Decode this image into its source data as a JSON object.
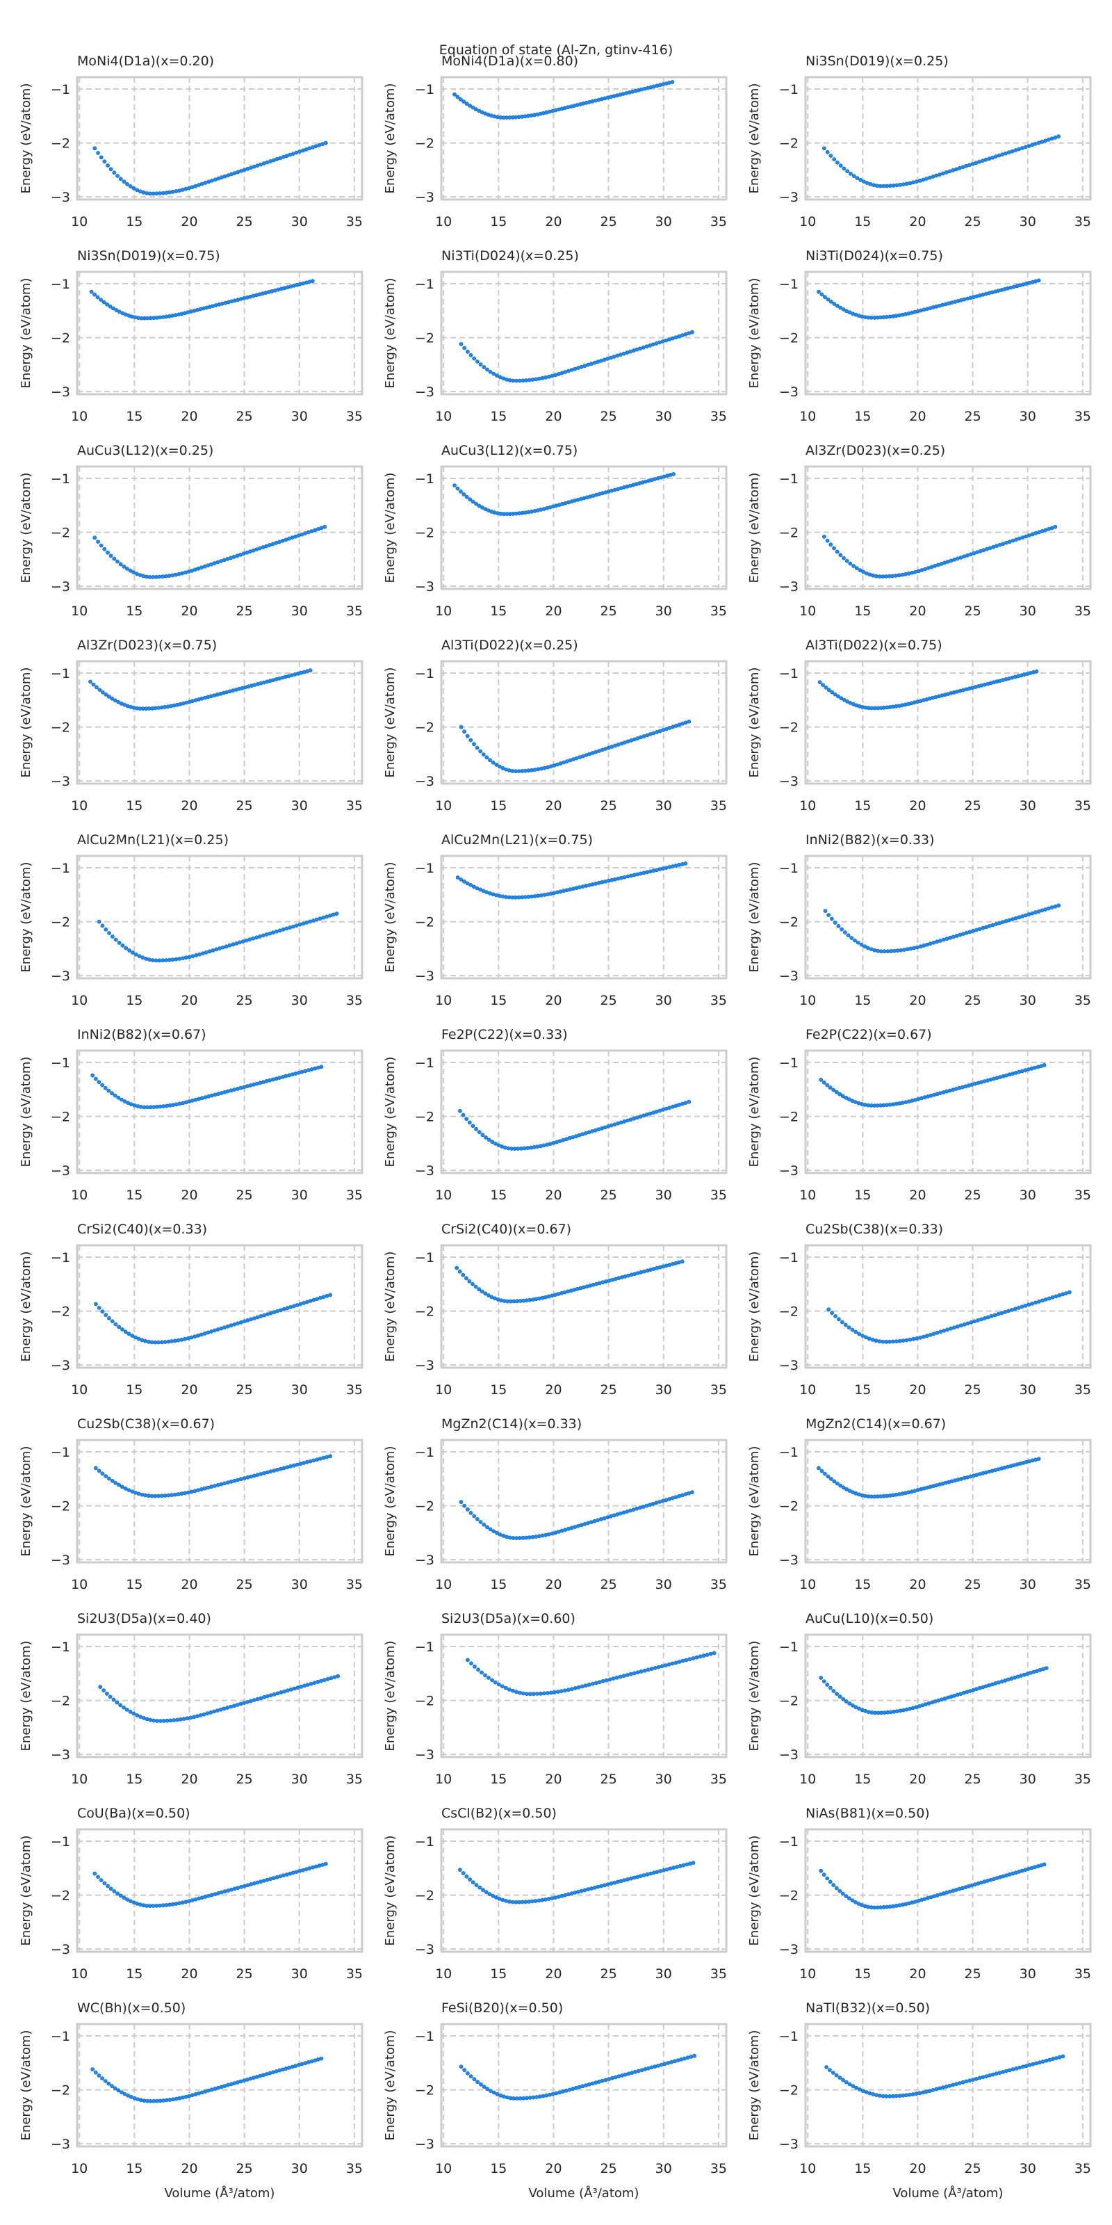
{
  "suptitle": "Equation of state (Al-Zn, gtinv-416)",
  "chart_data": {
    "type": "scatter",
    "title": "Equation of state (Al-Zn, gtinv-416)",
    "xlabel": "Volume (Å³/atom)",
    "ylabel": "Energy (eV/atom)",
    "xlim": [
      9.8,
      35.7
    ],
    "ylim": [
      -3.05,
      -0.78
    ],
    "xticks": [
      10,
      15,
      20,
      25,
      30,
      35
    ],
    "xtick_labels": [
      "10",
      "15",
      "20",
      "25",
      "30",
      "35"
    ],
    "yticks": [
      -1,
      -2,
      -3
    ],
    "ytick_labels": [
      "−1",
      "−2",
      "−3"
    ],
    "grid": true,
    "marker_color": "#2188e6",
    "points_per_panel": 72,
    "panels": [
      {
        "title": "MoNi4(D1a)(x=0.20)",
        "start": [
          11.4,
          -2.1
        ],
        "minimum": [
          16.5,
          -2.94
        ],
        "end": [
          32.4,
          -2.0
        ]
      },
      {
        "title": "MoNi4(D1a)(x=0.80)",
        "start": [
          11.0,
          -1.1
        ],
        "minimum": [
          15.5,
          -1.53
        ],
        "end": [
          30.8,
          -0.87
        ]
      },
      {
        "title": "Ni3Sn(D019)(x=0.25)",
        "start": [
          11.5,
          -2.1
        ],
        "minimum": [
          16.7,
          -2.8
        ],
        "end": [
          32.8,
          -1.88
        ]
      },
      {
        "title": "Ni3Sn(D019)(x=0.75)",
        "start": [
          11.1,
          -1.15
        ],
        "minimum": [
          15.8,
          -1.64
        ],
        "end": [
          31.2,
          -0.95
        ]
      },
      {
        "title": "Ni3Ti(D024)(x=0.25)",
        "start": [
          11.6,
          -2.12
        ],
        "minimum": [
          16.5,
          -2.8
        ],
        "end": [
          32.6,
          -1.9
        ]
      },
      {
        "title": "Ni3Ti(D024)(x=0.75)",
        "start": [
          11.0,
          -1.15
        ],
        "minimum": [
          15.8,
          -1.63
        ],
        "end": [
          31.0,
          -0.94
        ]
      },
      {
        "title": "AuCu3(L12)(x=0.25)",
        "start": [
          11.4,
          -2.1
        ],
        "minimum": [
          16.5,
          -2.83
        ],
        "end": [
          32.3,
          -1.9
        ]
      },
      {
        "title": "AuCu3(L12)(x=0.75)",
        "start": [
          11.0,
          -1.13
        ],
        "minimum": [
          15.5,
          -1.66
        ],
        "end": [
          30.9,
          -0.92
        ]
      },
      {
        "title": "Al3Zr(D023)(x=0.25)",
        "start": [
          11.5,
          -2.08
        ],
        "minimum": [
          16.6,
          -2.82
        ],
        "end": [
          32.5,
          -1.9
        ]
      },
      {
        "title": "Al3Zr(D023)(x=0.75)",
        "start": [
          11.0,
          -1.16
        ],
        "minimum": [
          15.7,
          -1.66
        ],
        "end": [
          31.0,
          -0.95
        ]
      },
      {
        "title": "Al3Ti(D022)(x=0.25)",
        "start": [
          11.6,
          -2.0
        ],
        "minimum": [
          16.5,
          -2.82
        ],
        "end": [
          32.3,
          -1.9
        ]
      },
      {
        "title": "Al3Ti(D022)(x=0.75)",
        "start": [
          11.1,
          -1.17
        ],
        "minimum": [
          15.8,
          -1.65
        ],
        "end": [
          30.8,
          -0.97
        ]
      },
      {
        "title": "AlCu2Mn(L21)(x=0.25)",
        "start": [
          11.8,
          -2.0
        ],
        "minimum": [
          17.0,
          -2.72
        ],
        "end": [
          33.4,
          -1.85
        ]
      },
      {
        "title": "AlCu2Mn(L21)(x=0.75)",
        "start": [
          11.3,
          -1.18
        ],
        "minimum": [
          16.3,
          -1.55
        ],
        "end": [
          32.0,
          -0.92
        ]
      },
      {
        "title": "InNi2(B82)(x=0.33)",
        "start": [
          11.6,
          -1.8
        ],
        "minimum": [
          16.8,
          -2.55
        ],
        "end": [
          32.8,
          -1.7
        ]
      },
      {
        "title": "InNi2(B82)(x=0.67)",
        "start": [
          11.2,
          -1.24
        ],
        "minimum": [
          16.0,
          -1.83
        ],
        "end": [
          32.0,
          -1.08
        ]
      },
      {
        "title": "Fe2P(C22)(x=0.33)",
        "start": [
          11.5,
          -1.9
        ],
        "minimum": [
          16.3,
          -2.6
        ],
        "end": [
          32.3,
          -1.73
        ]
      },
      {
        "title": "Fe2P(C22)(x=0.67)",
        "start": [
          11.2,
          -1.32
        ],
        "minimum": [
          15.9,
          -1.8
        ],
        "end": [
          31.5,
          -1.05
        ]
      },
      {
        "title": "CrSi2(C40)(x=0.33)",
        "start": [
          11.5,
          -1.87
        ],
        "minimum": [
          16.8,
          -2.58
        ],
        "end": [
          32.8,
          -1.7
        ]
      },
      {
        "title": "CrSi2(C40)(x=0.67)",
        "start": [
          11.2,
          -1.2
        ],
        "minimum": [
          15.9,
          -1.82
        ],
        "end": [
          31.7,
          -1.08
        ]
      },
      {
        "title": "Cu2Sb(C38)(x=0.33)",
        "start": [
          11.9,
          -1.97
        ],
        "minimum": [
          17.0,
          -2.57
        ],
        "end": [
          33.8,
          -1.65
        ]
      },
      {
        "title": "Cu2Sb(C38)(x=0.67)",
        "start": [
          11.5,
          -1.3
        ],
        "minimum": [
          16.7,
          -1.82
        ],
        "end": [
          32.8,
          -1.08
        ]
      },
      {
        "title": "MgZn2(C14)(x=0.33)",
        "start": [
          11.6,
          -1.93
        ],
        "minimum": [
          16.5,
          -2.6
        ],
        "end": [
          32.6,
          -1.75
        ]
      },
      {
        "title": "MgZn2(C14)(x=0.67)",
        "start": [
          11.0,
          -1.3
        ],
        "minimum": [
          15.8,
          -1.83
        ],
        "end": [
          31.0,
          -1.13
        ]
      },
      {
        "title": "Si2U3(D5a)(x=0.40)",
        "start": [
          11.9,
          -1.75
        ],
        "minimum": [
          17.2,
          -2.38
        ],
        "end": [
          33.5,
          -1.55
        ]
      },
      {
        "title": "Si2U3(D5a)(x=0.60)",
        "start": [
          12.2,
          -1.25
        ],
        "minimum": [
          17.8,
          -1.88
        ],
        "end": [
          34.6,
          -1.12
        ]
      },
      {
        "title": "AuCu(L10)(x=0.50)",
        "start": [
          11.2,
          -1.58
        ],
        "minimum": [
          16.2,
          -2.23
        ],
        "end": [
          31.7,
          -1.4
        ]
      },
      {
        "title": "CoU(Ba)(x=0.50)",
        "start": [
          11.4,
          -1.6
        ],
        "minimum": [
          16.4,
          -2.2
        ],
        "end": [
          32.4,
          -1.42
        ]
      },
      {
        "title": "CsCl(B2)(x=0.50)",
        "start": [
          11.5,
          -1.53
        ],
        "minimum": [
          16.5,
          -2.13
        ],
        "end": [
          32.7,
          -1.4
        ]
      },
      {
        "title": "NiAs(B81)(x=0.50)",
        "start": [
          11.2,
          -1.55
        ],
        "minimum": [
          16.0,
          -2.23
        ],
        "end": [
          31.5,
          -1.43
        ]
      },
      {
        "title": "WC(Bh)(x=0.50)",
        "start": [
          11.2,
          -1.62
        ],
        "minimum": [
          16.4,
          -2.21
        ],
        "end": [
          32.0,
          -1.42
        ]
      },
      {
        "title": "FeSi(B20)(x=0.50)",
        "start": [
          11.6,
          -1.57
        ],
        "minimum": [
          16.5,
          -2.16
        ],
        "end": [
          32.8,
          -1.37
        ]
      },
      {
        "title": "NaTl(B32)(x=0.50)",
        "start": [
          11.7,
          -1.58
        ],
        "minimum": [
          17.2,
          -2.12
        ],
        "end": [
          33.2,
          -1.38
        ]
      }
    ]
  }
}
